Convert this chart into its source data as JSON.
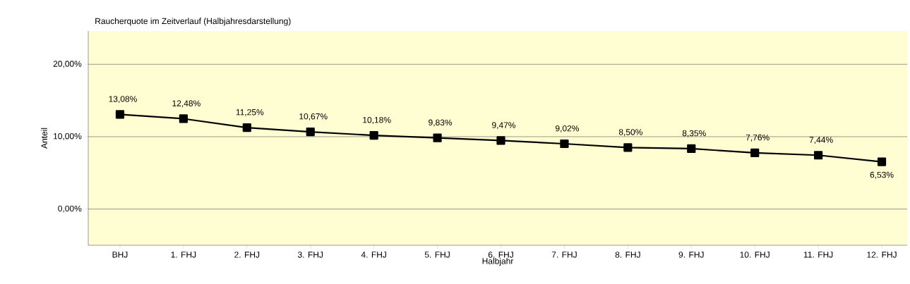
{
  "chart_data": {
    "type": "line",
    "title": "Raucherquote im Zeitverlauf (Halbjahresdarstellung)",
    "xlabel": "Halbjahr",
    "ylabel": "Anteil",
    "categories": [
      "BHJ",
      "1. FHJ",
      "2. FHJ",
      "3. FHJ",
      "4. FHJ",
      "5. FHJ",
      "6. FHJ",
      "7. FHJ",
      "8. FHJ",
      "9. FHJ",
      "10. FHJ",
      "11. FHJ",
      "12. FHJ"
    ],
    "series": [
      {
        "color": "#000000",
        "values": [
          13.08,
          12.48,
          11.25,
          10.67,
          10.18,
          9.83,
          9.47,
          9.02,
          8.5,
          8.35,
          7.76,
          7.44,
          6.53
        ],
        "value_labels": [
          "13,08%",
          "12,48%",
          "11,25%",
          "10,67%",
          "10,18%",
          "9,83%",
          "9,47%",
          "9,02%",
          "8,50%",
          "8,35%",
          "7,76%",
          "7,44%",
          "6,53%"
        ]
      }
    ],
    "ylim": [
      -5,
      24.6
    ],
    "yticks": [
      {
        "value": 0,
        "label": "0,00%"
      },
      {
        "value": 10,
        "label": "10,00%"
      },
      {
        "value": 20,
        "label": "20,00%"
      }
    ],
    "grid": "y",
    "marker": "square",
    "line_style": "solid"
  }
}
